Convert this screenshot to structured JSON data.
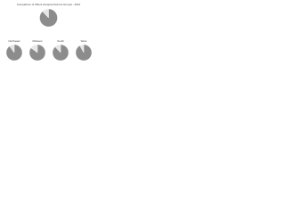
{
  "chart_data": [
    {
      "type": "pie",
      "title": "Comparison of Offers Accepted Across Groups - 2012",
      "values": [
        88,
        12
      ],
      "colors": [
        "#8c8c8c",
        "#e6e6e6"
      ]
    },
    {
      "type": "pie",
      "title": "Northeast",
      "values": [
        90,
        10
      ],
      "colors": [
        "#8c8c8c",
        "#e6e6e6"
      ]
    },
    {
      "type": "pie",
      "title": "Midwest",
      "values": [
        85,
        15
      ],
      "colors": [
        "#8c8c8c",
        "#e6e6e6"
      ]
    },
    {
      "type": "pie",
      "title": "South",
      "values": [
        88,
        12
      ],
      "colors": [
        "#8c8c8c",
        "#e6e6e6"
      ]
    },
    {
      "type": "pie",
      "title": "West",
      "values": [
        92,
        8
      ],
      "colors": [
        "#8c8c8c",
        "#e6e6e6"
      ]
    }
  ]
}
